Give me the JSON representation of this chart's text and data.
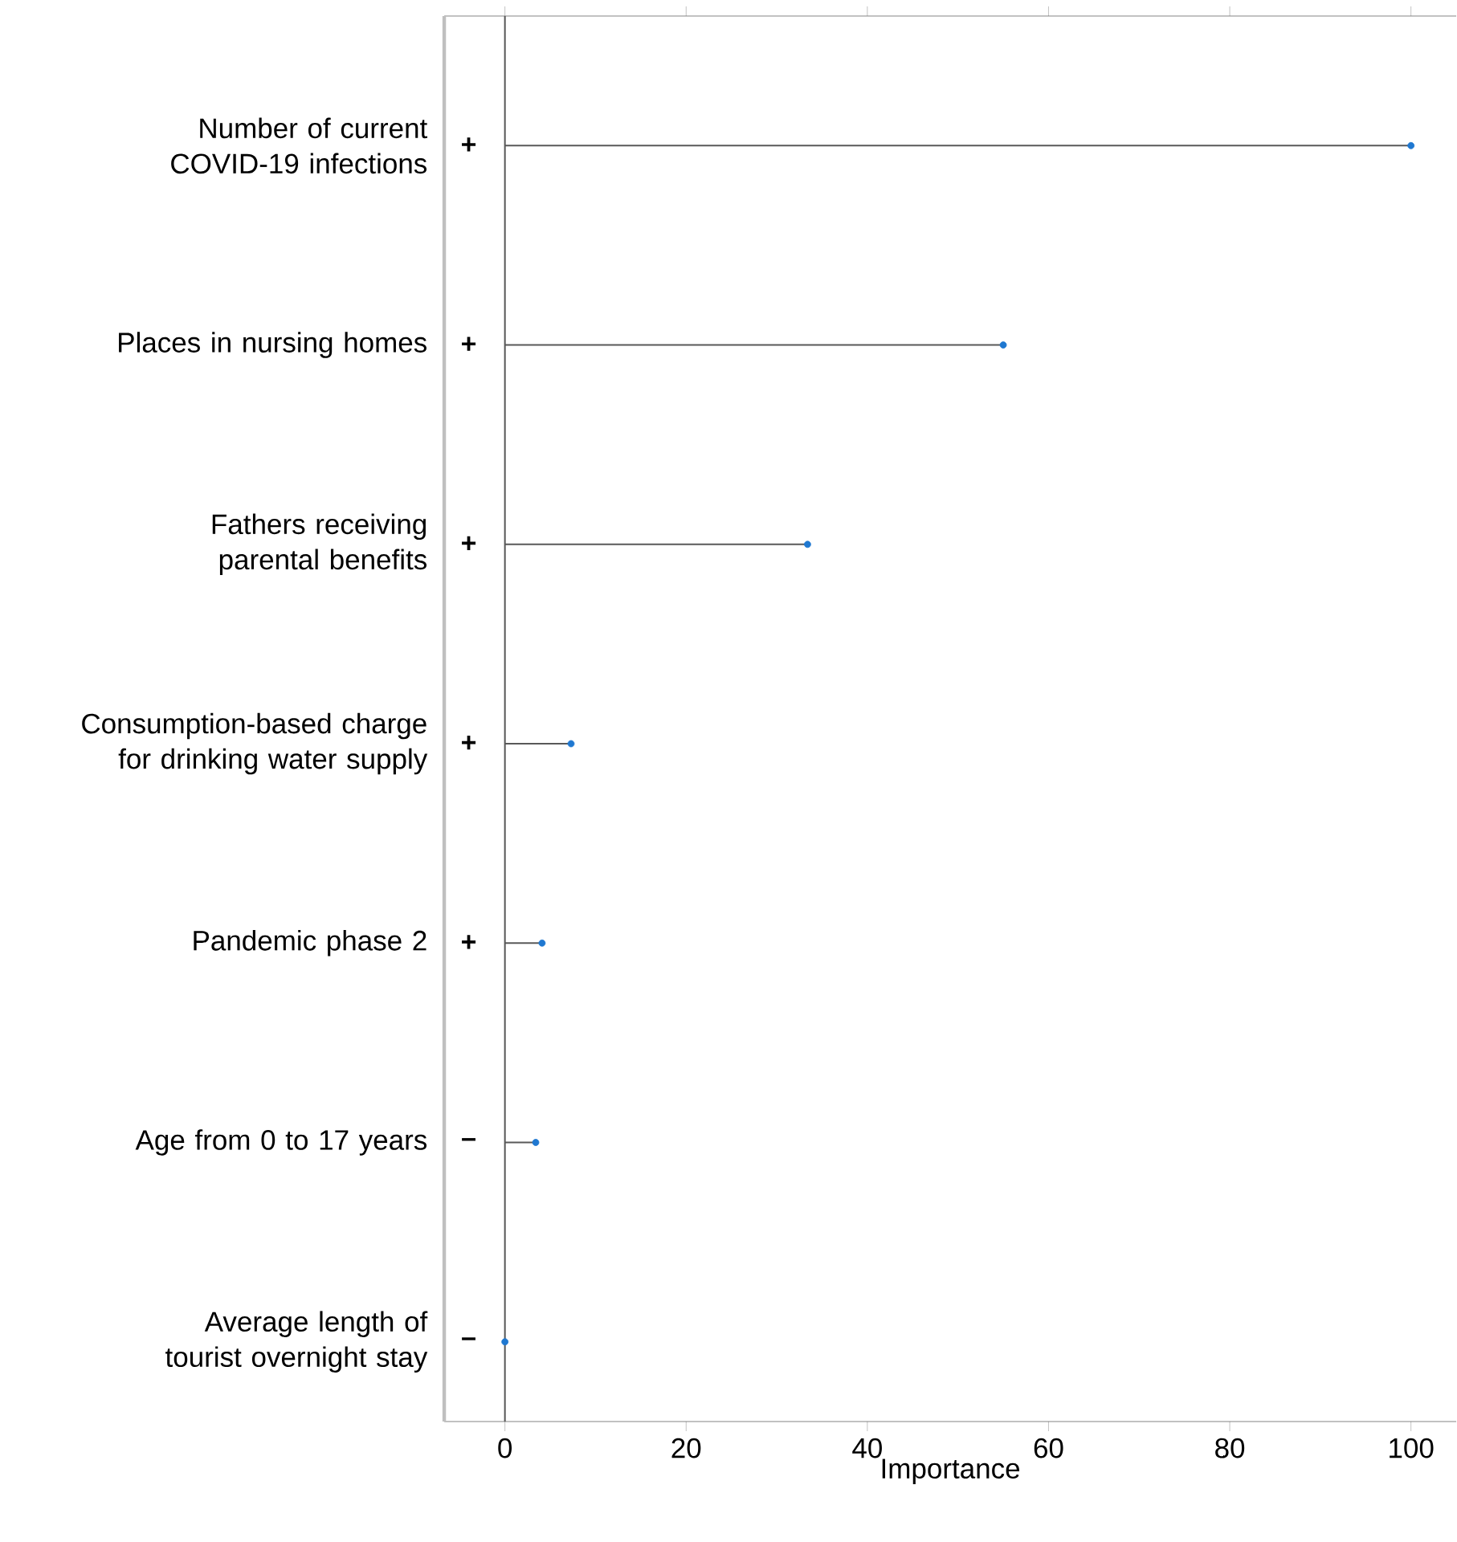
{
  "chart_data": {
    "type": "lollipop",
    "orientation": "horizontal",
    "xlabel": "Importance",
    "categories": [
      "Number of current COVID-19 infections",
      "Places in nursing homes",
      "Fathers receiving parental benefits",
      "Consumption-based charge for drinking water supply",
      "Pandemic phase 2",
      "Age from 0 to 17 years",
      "Average length of tourist overnight stay"
    ],
    "values": [
      100,
      55.0,
      33.4,
      7.3,
      4.1,
      3.4,
      0
    ],
    "color": "#1f78d1",
    "marker": "circle",
    "grid": false,
    "xlim": [
      -6.7,
      105
    ],
    "xticks": [
      0,
      20,
      40,
      60,
      80,
      100
    ],
    "ref_lines": [
      {
        "axis": "x",
        "value": 0,
        "color": "#555555"
      }
    ],
    "annotations": [
      "+",
      "+",
      "+",
      "+",
      "+",
      "–",
      "–"
    ]
  }
}
